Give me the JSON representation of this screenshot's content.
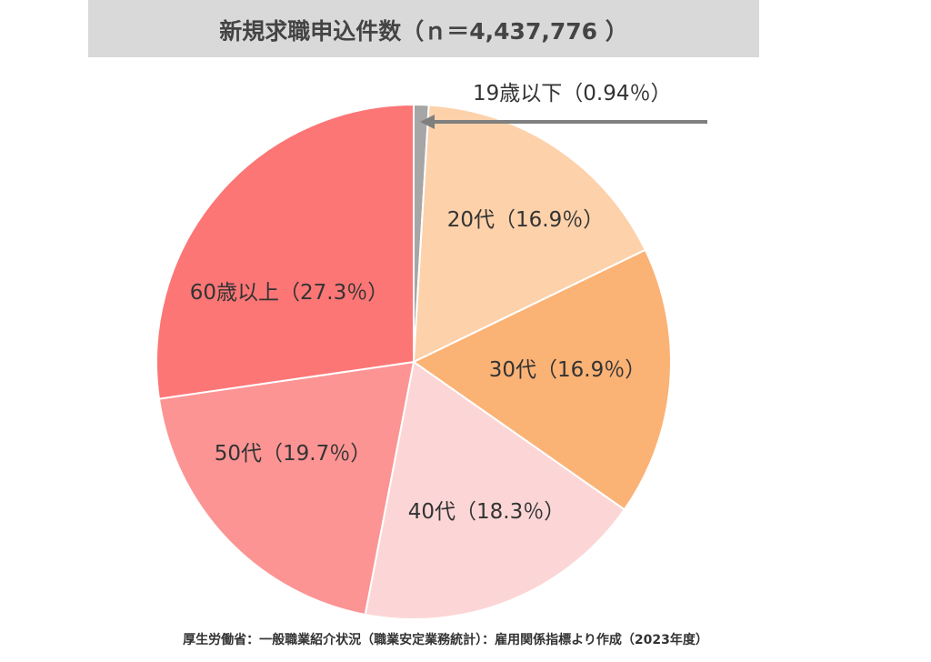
{
  "chart_data": {
    "type": "pie",
    "title": "新規求職申込件数（ｎ＝4,437,776 ）",
    "categories": [
      "19歳以下",
      "20代",
      "30代",
      "40代",
      "50代",
      "60歳以上"
    ],
    "values": [
      0.94,
      16.9,
      16.9,
      18.3,
      19.7,
      27.3
    ],
    "value_labels": [
      "（0.94％）",
      "（16.9％）",
      "（16.9％）",
      "（18.3％）",
      "（19.7％）",
      "（27.3％）"
    ],
    "colors": [
      "#a6a6a6",
      "#fdd1aa",
      "#fbb275",
      "#fcd6d6",
      "#fc9494",
      "#fc7676"
    ],
    "source": "厚生労働省：一般職業紹介状況（職業安定業務統計）：雇用関係指標より作成（2023年度）"
  }
}
